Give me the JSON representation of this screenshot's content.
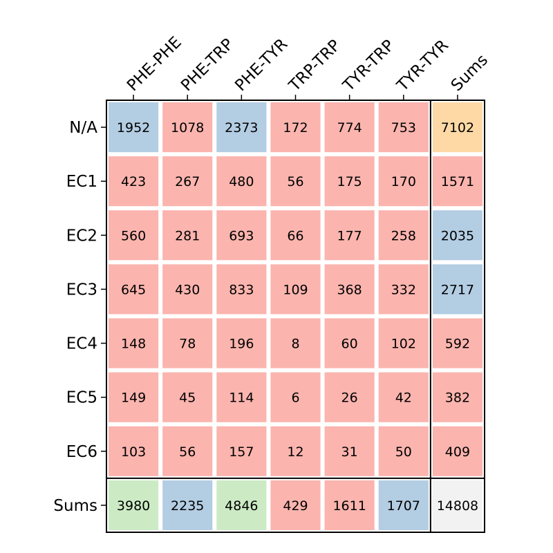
{
  "chart_data": {
    "type": "heatmap",
    "columns": [
      "PHE-PHE",
      "PHE-TRP",
      "PHE-TYR",
      "TRP-TRP",
      "TYR-TRP",
      "TYR-TYR",
      "Sums"
    ],
    "rows": [
      "N/A",
      "EC1",
      "EC2",
      "EC3",
      "EC4",
      "EC5",
      "EC6",
      "Sums"
    ],
    "values": [
      [
        1952,
        1078,
        2373,
        172,
        774,
        753,
        7102
      ],
      [
        423,
        267,
        480,
        56,
        175,
        170,
        1571
      ],
      [
        560,
        281,
        693,
        66,
        177,
        258,
        2035
      ],
      [
        645,
        430,
        833,
        109,
        368,
        332,
        2717
      ],
      [
        148,
        78,
        196,
        8,
        60,
        102,
        592
      ],
      [
        149,
        45,
        114,
        6,
        26,
        42,
        382
      ],
      [
        103,
        56,
        157,
        12,
        31,
        50,
        409
      ],
      [
        3980,
        2235,
        4846,
        429,
        1611,
        1707,
        14808
      ]
    ],
    "colors": [
      [
        "#b3cde3",
        "#fbb4ae",
        "#b3cde3",
        "#fbb4ae",
        "#fbb4ae",
        "#fbb4ae",
        "#fed9a6"
      ],
      [
        "#fbb4ae",
        "#fbb4ae",
        "#fbb4ae",
        "#fbb4ae",
        "#fbb4ae",
        "#fbb4ae",
        "#fbb4ae"
      ],
      [
        "#fbb4ae",
        "#fbb4ae",
        "#fbb4ae",
        "#fbb4ae",
        "#fbb4ae",
        "#fbb4ae",
        "#b3cde3"
      ],
      [
        "#fbb4ae",
        "#fbb4ae",
        "#fbb4ae",
        "#fbb4ae",
        "#fbb4ae",
        "#fbb4ae",
        "#b3cde3"
      ],
      [
        "#fbb4ae",
        "#fbb4ae",
        "#fbb4ae",
        "#fbb4ae",
        "#fbb4ae",
        "#fbb4ae",
        "#fbb4ae"
      ],
      [
        "#fbb4ae",
        "#fbb4ae",
        "#fbb4ae",
        "#fbb4ae",
        "#fbb4ae",
        "#fbb4ae",
        "#fbb4ae"
      ],
      [
        "#fbb4ae",
        "#fbb4ae",
        "#fbb4ae",
        "#fbb4ae",
        "#fbb4ae",
        "#fbb4ae",
        "#fbb4ae"
      ],
      [
        "#ccebc5",
        "#b3cde3",
        "#ccebc5",
        "#fbb4ae",
        "#fbb4ae",
        "#b3cde3",
        "#f2f2f2"
      ]
    ],
    "grid": false,
    "legend": "none"
  }
}
